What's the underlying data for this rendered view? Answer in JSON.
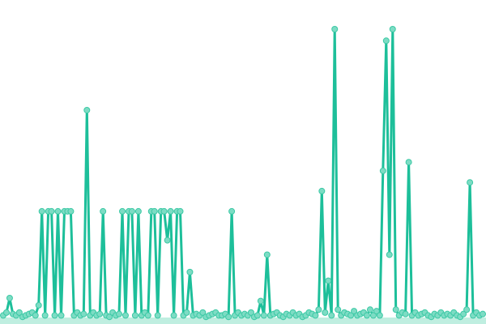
{
  "chart_data": {
    "type": "line",
    "markers": true,
    "grid": false,
    "axes_visible": false,
    "legend": "none",
    "ylim": [
      0,
      100
    ],
    "xlim": [
      0,
      149
    ],
    "colors": {
      "line": "#1dbf9a",
      "marker_fill": "#7ddcc4",
      "marker_stroke": "#3cc9a5"
    },
    "series": [
      {
        "values": [
          1,
          2,
          7,
          1.5,
          1,
          2,
          0.5,
          1,
          1.5,
          2,
          1,
          4.5,
          37,
          1,
          37,
          37,
          1,
          37,
          1,
          37,
          37,
          37,
          1,
          2,
          1,
          1.5,
          72,
          1,
          2,
          1,
          1.5,
          37,
          1,
          0.5,
          2,
          1,
          1.5,
          37,
          1,
          37,
          37,
          1,
          37,
          1,
          2,
          1,
          37,
          37,
          1,
          37,
          37,
          27,
          37,
          1,
          37,
          37,
          1,
          2,
          16,
          1,
          1.5,
          1,
          2,
          0.5,
          1,
          1.5,
          2,
          1,
          1,
          1.5,
          0.5,
          37,
          1,
          2,
          1,
          1.5,
          1,
          2,
          0.5,
          1,
          6,
          1,
          22,
          1,
          1.5,
          2,
          1,
          0.5,
          1.5,
          1,
          2,
          1,
          1.5,
          0.5,
          1,
          2,
          1.5,
          1,
          3,
          44,
          2,
          13,
          1,
          100,
          3,
          1,
          2,
          1.5,
          1,
          2.5,
          1,
          1.5,
          2,
          1,
          3,
          1,
          2.5,
          1,
          51,
          96,
          22,
          100,
          3,
          1,
          2,
          1.5,
          54,
          1,
          2,
          1,
          1.5,
          2,
          1,
          0.5,
          1.5,
          1,
          2,
          1,
          1.5,
          1,
          2,
          1,
          0.5,
          1.5,
          3,
          47,
          1,
          2,
          1,
          1.5
        ]
      }
    ]
  }
}
